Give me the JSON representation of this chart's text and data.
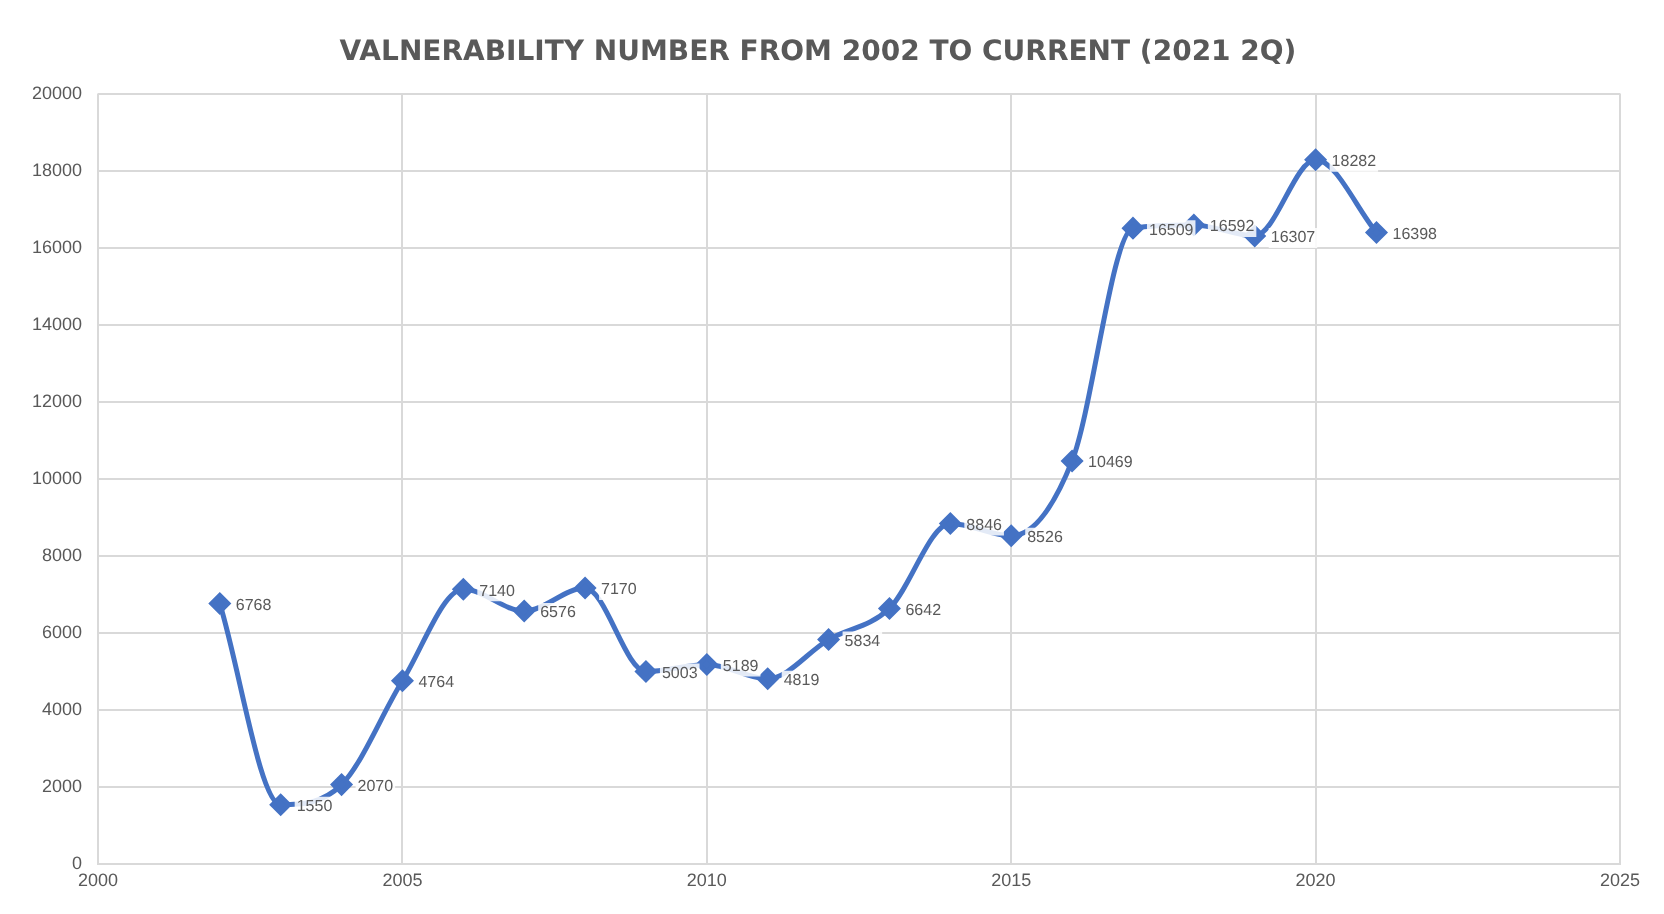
{
  "chart_data": {
    "type": "line",
    "title": "VALNERABILITY NUMBER FROM 2002 TO CURRENT (2021 2Q)",
    "x": [
      2002,
      2003,
      2004,
      2005,
      2006,
      2007,
      2008,
      2009,
      2010,
      2011,
      2012,
      2013,
      2014,
      2015,
      2016,
      2017,
      2018,
      2019,
      2020,
      2021
    ],
    "series": [
      {
        "color": "#4472c4",
        "values": [
          6768,
          1550,
          2070,
          4764,
          7140,
          6576,
          7170,
          5003,
          5189,
          4819,
          5834,
          6642,
          8846,
          8526,
          10469,
          16509,
          16592,
          16307,
          18282,
          16398
        ]
      }
    ],
    "xlim": [
      2000,
      2025
    ],
    "xticks": [
      2000,
      2005,
      2010,
      2015,
      2020,
      2025
    ],
    "ylim": [
      0,
      20000
    ],
    "yticks": [
      0,
      2000,
      4000,
      6000,
      8000,
      10000,
      12000,
      14000,
      16000,
      18000,
      20000
    ],
    "grid": true,
    "legend": false,
    "marker": "diamond",
    "line_style": "solid",
    "data_labels": true
  }
}
